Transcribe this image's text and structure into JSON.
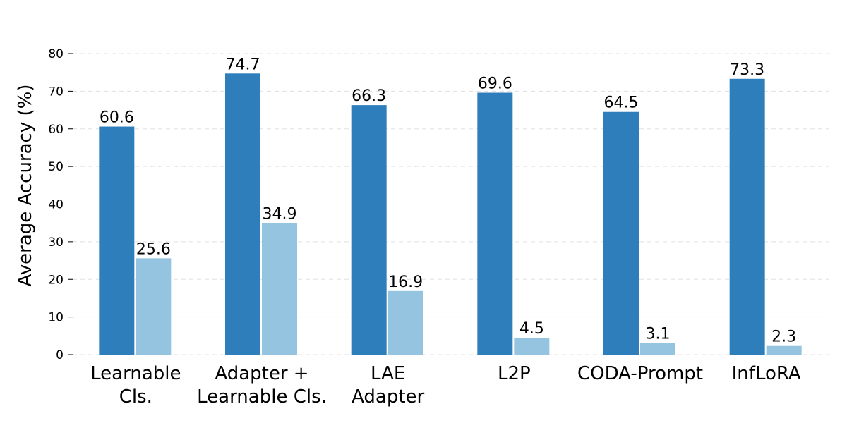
{
  "chart_data": {
    "type": "bar",
    "title": "",
    "xlabel": "",
    "ylabel": "Average Accuracy (%)",
    "ylim": [
      0,
      80
    ],
    "yticks": [
      0,
      10,
      20,
      30,
      40,
      50,
      60,
      70,
      80
    ],
    "grid": "horizontal dashed",
    "categories": [
      [
        "Learnable",
        "Cls."
      ],
      [
        "Adapter +",
        "Learnable Cls."
      ],
      [
        "LAE",
        "Adapter"
      ],
      [
        "L2P"
      ],
      [
        "CODA-Prompt"
      ],
      [
        "InfLoRA"
      ]
    ],
    "series": [
      {
        "name": "series-1",
        "color": "#2f7ebc",
        "values": [
          60.6,
          74.7,
          66.3,
          69.6,
          64.5,
          73.3
        ]
      },
      {
        "name": "series-2",
        "color": "#94c4df",
        "values": [
          25.6,
          34.9,
          16.9,
          4.5,
          3.1,
          2.3
        ]
      }
    ],
    "value_labels": [
      [
        "60.6",
        "74.7",
        "66.3",
        "69.6",
        "64.5",
        "73.3"
      ],
      [
        "25.6",
        "34.9",
        "16.9",
        "4.5",
        "3.1",
        "2.3"
      ]
    ]
  }
}
